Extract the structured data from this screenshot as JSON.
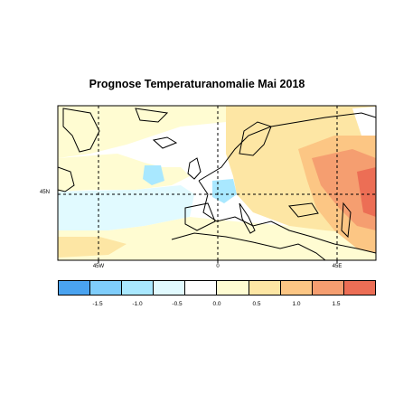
{
  "title": "Prognose Temperaturanomalie Mai 2018",
  "map": {
    "lat_labels": [
      "45N"
    ],
    "lon_labels": [
      "45W",
      "0",
      "45E"
    ],
    "anomaly_colors": {
      "m15": "#4aa3f0",
      "m10": "#7fcdfb",
      "m05": "#a9e8ff",
      "m00": "#e1faff",
      "p00": "#fffcd2",
      "p05": "#fde6a4",
      "p10": "#fcc684",
      "p15": "#f59e70",
      "p20": "#ec6e55"
    },
    "land_color": "#ffffff",
    "gridline_color": "#000000"
  },
  "legend": {
    "ticks": [
      "-1.5",
      "-1.0",
      "-0.5",
      "0.0",
      "0.5",
      "1.0",
      "1.5"
    ],
    "swatch_colors": [
      "#4aa3f0",
      "#7fcdfb",
      "#a9e8ff",
      "#e1faff",
      "#ffffff",
      "#fffcd2",
      "#fde6a4",
      "#fcc684",
      "#f59e70",
      "#ec6e55"
    ]
  }
}
